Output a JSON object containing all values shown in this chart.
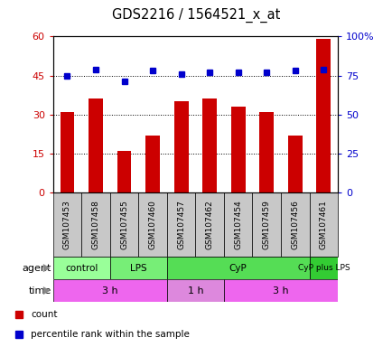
{
  "title": "GDS2216 / 1564521_x_at",
  "samples": [
    "GSM107453",
    "GSM107458",
    "GSM107455",
    "GSM107460",
    "GSM107457",
    "GSM107462",
    "GSM107454",
    "GSM107459",
    "GSM107456",
    "GSM107461"
  ],
  "counts": [
    31,
    36,
    16,
    22,
    35,
    36,
    33,
    31,
    22,
    59
  ],
  "percentile_ranks": [
    75,
    79,
    71,
    78,
    76,
    77,
    77,
    77,
    78,
    79
  ],
  "bar_color": "#cc0000",
  "dot_color": "#0000cc",
  "left_ylim": [
    0,
    60
  ],
  "right_ylim": [
    0,
    100
  ],
  "left_yticks": [
    0,
    15,
    30,
    45,
    60
  ],
  "left_yticklabels": [
    "0",
    "15",
    "30",
    "45",
    "60"
  ],
  "right_yticks": [
    0,
    25,
    50,
    75,
    100
  ],
  "right_yticklabels": [
    "0",
    "25",
    "50",
    "75",
    "100%"
  ],
  "agent_groups": [
    {
      "label": "control",
      "start": 0,
      "end": 2,
      "color": "#99ff99"
    },
    {
      "label": "LPS",
      "start": 2,
      "end": 4,
      "color": "#77ee77"
    },
    {
      "label": "CyP",
      "start": 4,
      "end": 9,
      "color": "#55dd55"
    },
    {
      "label": "CyP plus LPS",
      "start": 9,
      "end": 10,
      "color": "#33cc33"
    }
  ],
  "time_groups": [
    {
      "label": "3 h",
      "start": 0,
      "end": 4,
      "color": "#ee66ee"
    },
    {
      "label": "1 h",
      "start": 4,
      "end": 6,
      "color": "#dd88dd"
    },
    {
      "label": "3 h",
      "start": 6,
      "end": 10,
      "color": "#ee66ee"
    }
  ],
  "legend_items": [
    {
      "label": "count",
      "color": "#cc0000"
    },
    {
      "label": "percentile rank within the sample",
      "color": "#0000cc"
    }
  ],
  "grid_color": "black",
  "sample_box_color": "#c8c8c8",
  "title_fontsize": 10.5
}
